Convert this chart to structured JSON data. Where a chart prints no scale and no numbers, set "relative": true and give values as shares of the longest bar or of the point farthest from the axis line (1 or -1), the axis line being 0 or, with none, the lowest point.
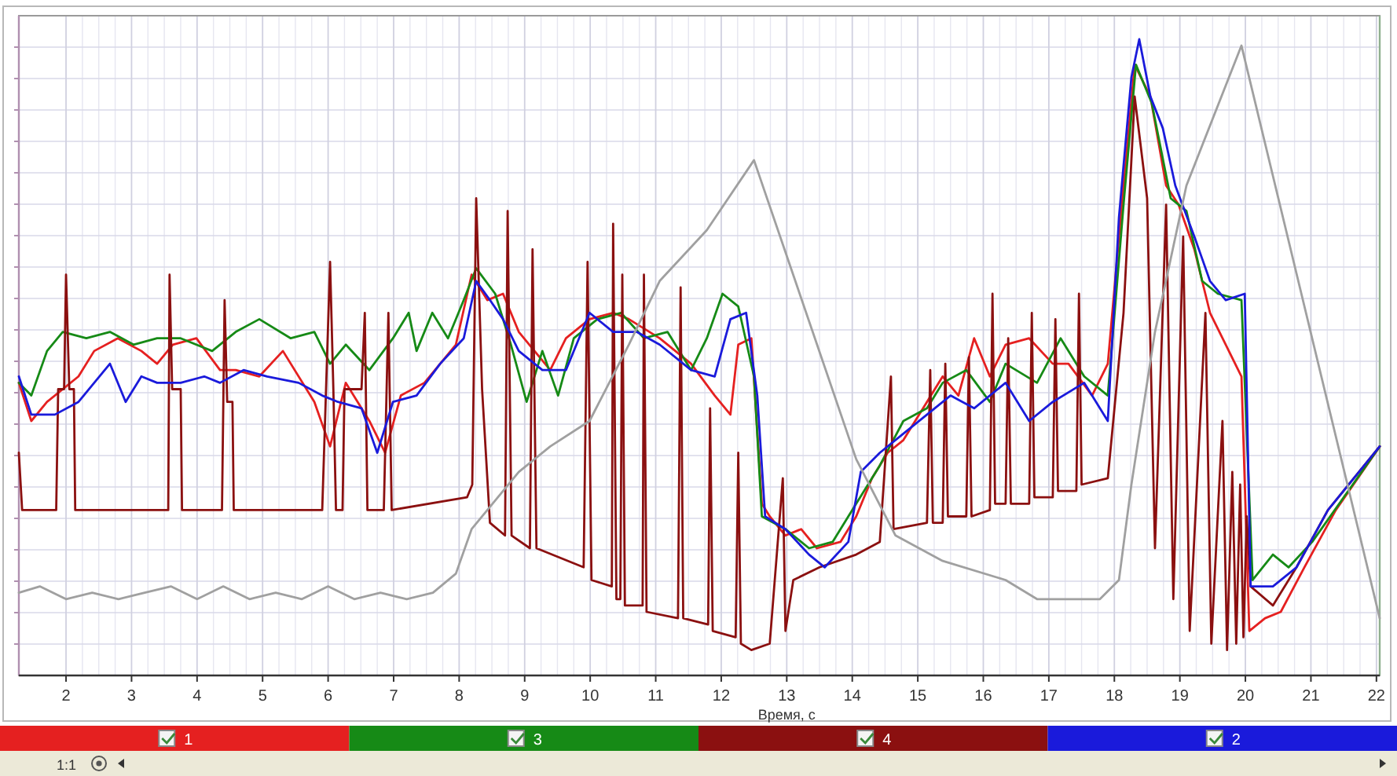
{
  "chart_data": {
    "type": "line",
    "relative": true,
    "xlabel": "Время, с",
    "xlim": [
      1.28,
      22.05
    ],
    "xticks": [
      2,
      3,
      4,
      5,
      6,
      7,
      8,
      9,
      10,
      11,
      12,
      13,
      14,
      15,
      16,
      17,
      18,
      19,
      20,
      21,
      22
    ],
    "grid": true,
    "legend": "bottom",
    "marker": "none",
    "line_style": "solid",
    "annotations": [
      "1:1"
    ],
    "series": [
      {
        "name": "1",
        "color": "#e52020",
        "x": [
          1.28,
          1.47,
          1.71,
          2.19,
          2.43,
          2.79,
          3.15,
          3.39,
          3.63,
          3.99,
          4.35,
          4.59,
          4.95,
          5.31,
          5.79,
          6.03,
          6.27,
          6.63,
          6.87,
          7.11,
          7.47,
          7.95,
          8.19,
          8.43,
          8.67,
          8.91,
          9.15,
          9.39,
          9.63,
          9.99,
          10.35,
          10.59,
          11.06,
          11.54,
          11.9,
          12.14,
          12.26,
          12.46,
          12.62,
          12.74,
          12.98,
          13.22,
          13.46,
          13.82,
          14.06,
          14.3,
          14.54,
          14.78,
          15.14,
          15.38,
          15.62,
          15.86,
          16.1,
          16.34,
          16.7,
          17.06,
          17.3,
          17.66,
          17.9,
          18.14,
          18.31,
          18.55,
          18.79,
          18.98,
          19.22,
          19.46,
          19.7,
          19.94,
          20.06,
          20.3,
          20.54,
          20.9,
          21.38,
          22.05
        ],
        "values": [
          0.46,
          0.4,
          0.43,
          0.47,
          0.51,
          0.53,
          0.51,
          0.49,
          0.52,
          0.53,
          0.48,
          0.48,
          0.47,
          0.51,
          0.43,
          0.36,
          0.46,
          0.4,
          0.35,
          0.44,
          0.46,
          0.52,
          0.63,
          0.59,
          0.6,
          0.54,
          0.51,
          0.48,
          0.53,
          0.56,
          0.57,
          0.56,
          0.53,
          0.49,
          0.44,
          0.41,
          0.52,
          0.53,
          0.27,
          0.25,
          0.22,
          0.23,
          0.2,
          0.21,
          0.25,
          0.31,
          0.35,
          0.37,
          0.43,
          0.47,
          0.44,
          0.53,
          0.47,
          0.52,
          0.53,
          0.49,
          0.49,
          0.44,
          0.49,
          0.77,
          0.96,
          0.91,
          0.77,
          0.74,
          0.67,
          0.57,
          0.52,
          0.47,
          0.07,
          0.09,
          0.1,
          0.17,
          0.26,
          0.36
        ]
      },
      {
        "name": "3",
        "color": "#168a16",
        "x": [
          1.28,
          1.47,
          1.71,
          1.95,
          2.31,
          2.67,
          3.03,
          3.39,
          3.75,
          4.23,
          4.59,
          4.95,
          5.43,
          5.79,
          6.03,
          6.27,
          6.63,
          6.99,
          7.23,
          7.35,
          7.59,
          7.83,
          8.07,
          8.26,
          8.55,
          8.79,
          9.03,
          9.27,
          9.51,
          9.75,
          10.11,
          10.47,
          10.82,
          11.18,
          11.54,
          11.78,
          12.02,
          12.26,
          12.5,
          12.62,
          12.98,
          13.34,
          13.7,
          14.06,
          14.42,
          14.78,
          15.14,
          15.38,
          15.74,
          16.1,
          16.34,
          16.82,
          17.18,
          17.54,
          17.9,
          18.14,
          18.33,
          18.57,
          18.86,
          19.1,
          19.34,
          19.58,
          19.94,
          20.11,
          20.42,
          20.66,
          21.02,
          21.5,
          22.05
        ],
        "values": [
          0.46,
          0.44,
          0.51,
          0.54,
          0.53,
          0.54,
          0.52,
          0.53,
          0.53,
          0.51,
          0.54,
          0.56,
          0.53,
          0.54,
          0.49,
          0.52,
          0.48,
          0.53,
          0.57,
          0.51,
          0.57,
          0.53,
          0.59,
          0.64,
          0.6,
          0.52,
          0.43,
          0.51,
          0.44,
          0.53,
          0.56,
          0.57,
          0.53,
          0.54,
          0.48,
          0.53,
          0.6,
          0.58,
          0.47,
          0.25,
          0.23,
          0.2,
          0.21,
          0.27,
          0.33,
          0.4,
          0.42,
          0.46,
          0.48,
          0.43,
          0.49,
          0.46,
          0.53,
          0.47,
          0.44,
          0.74,
          0.96,
          0.9,
          0.75,
          0.73,
          0.62,
          0.6,
          0.59,
          0.15,
          0.19,
          0.17,
          0.21,
          0.28,
          0.36
        ]
      },
      {
        "name": "4",
        "color": "#8b1010",
        "x": [
          1.28,
          1.33,
          1.85,
          1.88,
          1.97,
          2.0,
          2.05,
          2.12,
          2.14,
          3.56,
          3.58,
          3.62,
          3.75,
          3.77,
          4.38,
          4.42,
          4.46,
          4.54,
          4.56,
          5.91,
          6.03,
          6.08,
          6.12,
          6.22,
          6.25,
          6.51,
          6.56,
          6.6,
          6.85,
          6.92,
          6.97,
          8.12,
          8.2,
          8.26,
          8.35,
          8.47,
          8.7,
          8.74,
          8.8,
          9.08,
          9.12,
          9.18,
          9.9,
          9.96,
          10.02,
          10.33,
          10.35,
          10.4,
          10.46,
          10.49,
          10.53,
          10.8,
          10.82,
          10.86,
          11.34,
          11.38,
          11.42,
          11.8,
          11.83,
          11.87,
          12.22,
          12.26,
          12.3,
          12.46,
          12.74,
          12.94,
          12.98,
          13.1,
          13.5,
          14.06,
          14.42,
          14.59,
          14.63,
          15.14,
          15.19,
          15.23,
          15.38,
          15.42,
          15.46,
          15.74,
          15.78,
          15.82,
          16.1,
          16.14,
          16.18,
          16.34,
          16.38,
          16.42,
          16.7,
          16.74,
          16.78,
          17.06,
          17.1,
          17.14,
          17.42,
          17.46,
          17.5,
          17.9,
          18.14,
          18.31,
          18.5,
          18.62,
          18.79,
          18.9,
          19.05,
          19.15,
          19.39,
          19.48,
          19.65,
          19.72,
          19.8,
          19.86,
          19.92,
          19.97,
          20.02,
          20.08,
          20.42,
          20.78,
          21.26,
          22.05
        ],
        "values": [
          0.35,
          0.26,
          0.26,
          0.45,
          0.45,
          0.63,
          0.45,
          0.45,
          0.26,
          0.26,
          0.63,
          0.45,
          0.45,
          0.26,
          0.26,
          0.59,
          0.43,
          0.43,
          0.26,
          0.26,
          0.65,
          0.45,
          0.26,
          0.26,
          0.45,
          0.45,
          0.57,
          0.26,
          0.26,
          0.57,
          0.26,
          0.28,
          0.3,
          0.75,
          0.45,
          0.24,
          0.22,
          0.73,
          0.22,
          0.2,
          0.67,
          0.2,
          0.17,
          0.65,
          0.15,
          0.14,
          0.71,
          0.12,
          0.12,
          0.63,
          0.11,
          0.11,
          0.63,
          0.1,
          0.09,
          0.61,
          0.09,
          0.08,
          0.42,
          0.07,
          0.06,
          0.35,
          0.05,
          0.04,
          0.05,
          0.31,
          0.07,
          0.15,
          0.17,
          0.19,
          0.21,
          0.47,
          0.23,
          0.24,
          0.48,
          0.24,
          0.24,
          0.49,
          0.25,
          0.25,
          0.5,
          0.25,
          0.26,
          0.6,
          0.27,
          0.27,
          0.53,
          0.27,
          0.27,
          0.57,
          0.28,
          0.28,
          0.56,
          0.29,
          0.29,
          0.6,
          0.3,
          0.31,
          0.57,
          0.91,
          0.75,
          0.2,
          0.74,
          0.12,
          0.69,
          0.07,
          0.57,
          0.05,
          0.4,
          0.04,
          0.32,
          0.05,
          0.3,
          0.06,
          0.25,
          0.14,
          0.11,
          0.17,
          0.26,
          0.36
        ]
      },
      {
        "name": "2",
        "color": "#1a1adb",
        "x": [
          1.28,
          1.47,
          1.83,
          2.19,
          2.43,
          2.67,
          2.91,
          3.15,
          3.39,
          3.75,
          4.11,
          4.35,
          4.71,
          5.07,
          5.55,
          5.91,
          6.15,
          6.51,
          6.75,
          6.99,
          7.35,
          7.71,
          8.07,
          8.26,
          8.47,
          8.67,
          8.91,
          9.27,
          9.63,
          9.99,
          10.35,
          10.71,
          11.06,
          11.54,
          11.9,
          12.14,
          12.38,
          12.55,
          12.67,
          12.98,
          13.34,
          13.58,
          13.94,
          14.13,
          14.42,
          14.78,
          15.14,
          15.5,
          15.86,
          16.34,
          16.7,
          17.06,
          17.54,
          17.9,
          18.07,
          18.26,
          18.38,
          18.55,
          18.74,
          18.93,
          19.22,
          19.46,
          19.7,
          19.99,
          20.08,
          20.42,
          20.78,
          21.26,
          22.05
        ],
        "values": [
          0.47,
          0.41,
          0.41,
          0.43,
          0.46,
          0.49,
          0.43,
          0.47,
          0.46,
          0.46,
          0.47,
          0.46,
          0.48,
          0.47,
          0.46,
          0.44,
          0.43,
          0.42,
          0.35,
          0.43,
          0.44,
          0.49,
          0.53,
          0.62,
          0.59,
          0.56,
          0.51,
          0.48,
          0.48,
          0.57,
          0.54,
          0.54,
          0.52,
          0.48,
          0.47,
          0.56,
          0.57,
          0.44,
          0.25,
          0.23,
          0.19,
          0.17,
          0.21,
          0.32,
          0.35,
          0.38,
          0.41,
          0.44,
          0.42,
          0.46,
          0.4,
          0.43,
          0.46,
          0.4,
          0.72,
          0.94,
          1.0,
          0.91,
          0.86,
          0.77,
          0.69,
          0.62,
          0.59,
          0.6,
          0.14,
          0.14,
          0.17,
          0.26,
          0.36
        ]
      },
      {
        "color": "#a0a0a0",
        "x": [
          1.28,
          1.6,
          2.0,
          2.4,
          2.8,
          3.2,
          3.6,
          4.0,
          4.4,
          4.8,
          5.2,
          5.6,
          6.0,
          6.4,
          6.8,
          7.2,
          7.6,
          7.95,
          8.19,
          8.43,
          8.91,
          9.39,
          9.99,
          10.59,
          11.06,
          11.78,
          12.5,
          14.06,
          14.66,
          15.38,
          16.34,
          16.82,
          17.78,
          18.07,
          18.26,
          18.62,
          19.1,
          19.94,
          22.05
        ],
        "values": [
          0.13,
          0.14,
          0.12,
          0.13,
          0.12,
          0.13,
          0.14,
          0.12,
          0.14,
          0.12,
          0.13,
          0.12,
          0.14,
          0.12,
          0.13,
          0.12,
          0.13,
          0.16,
          0.23,
          0.26,
          0.32,
          0.36,
          0.4,
          0.52,
          0.62,
          0.7,
          0.81,
          0.34,
          0.22,
          0.18,
          0.15,
          0.12,
          0.12,
          0.15,
          0.3,
          0.54,
          0.77,
          0.99,
          0.09
        ]
      }
    ]
  }
}
